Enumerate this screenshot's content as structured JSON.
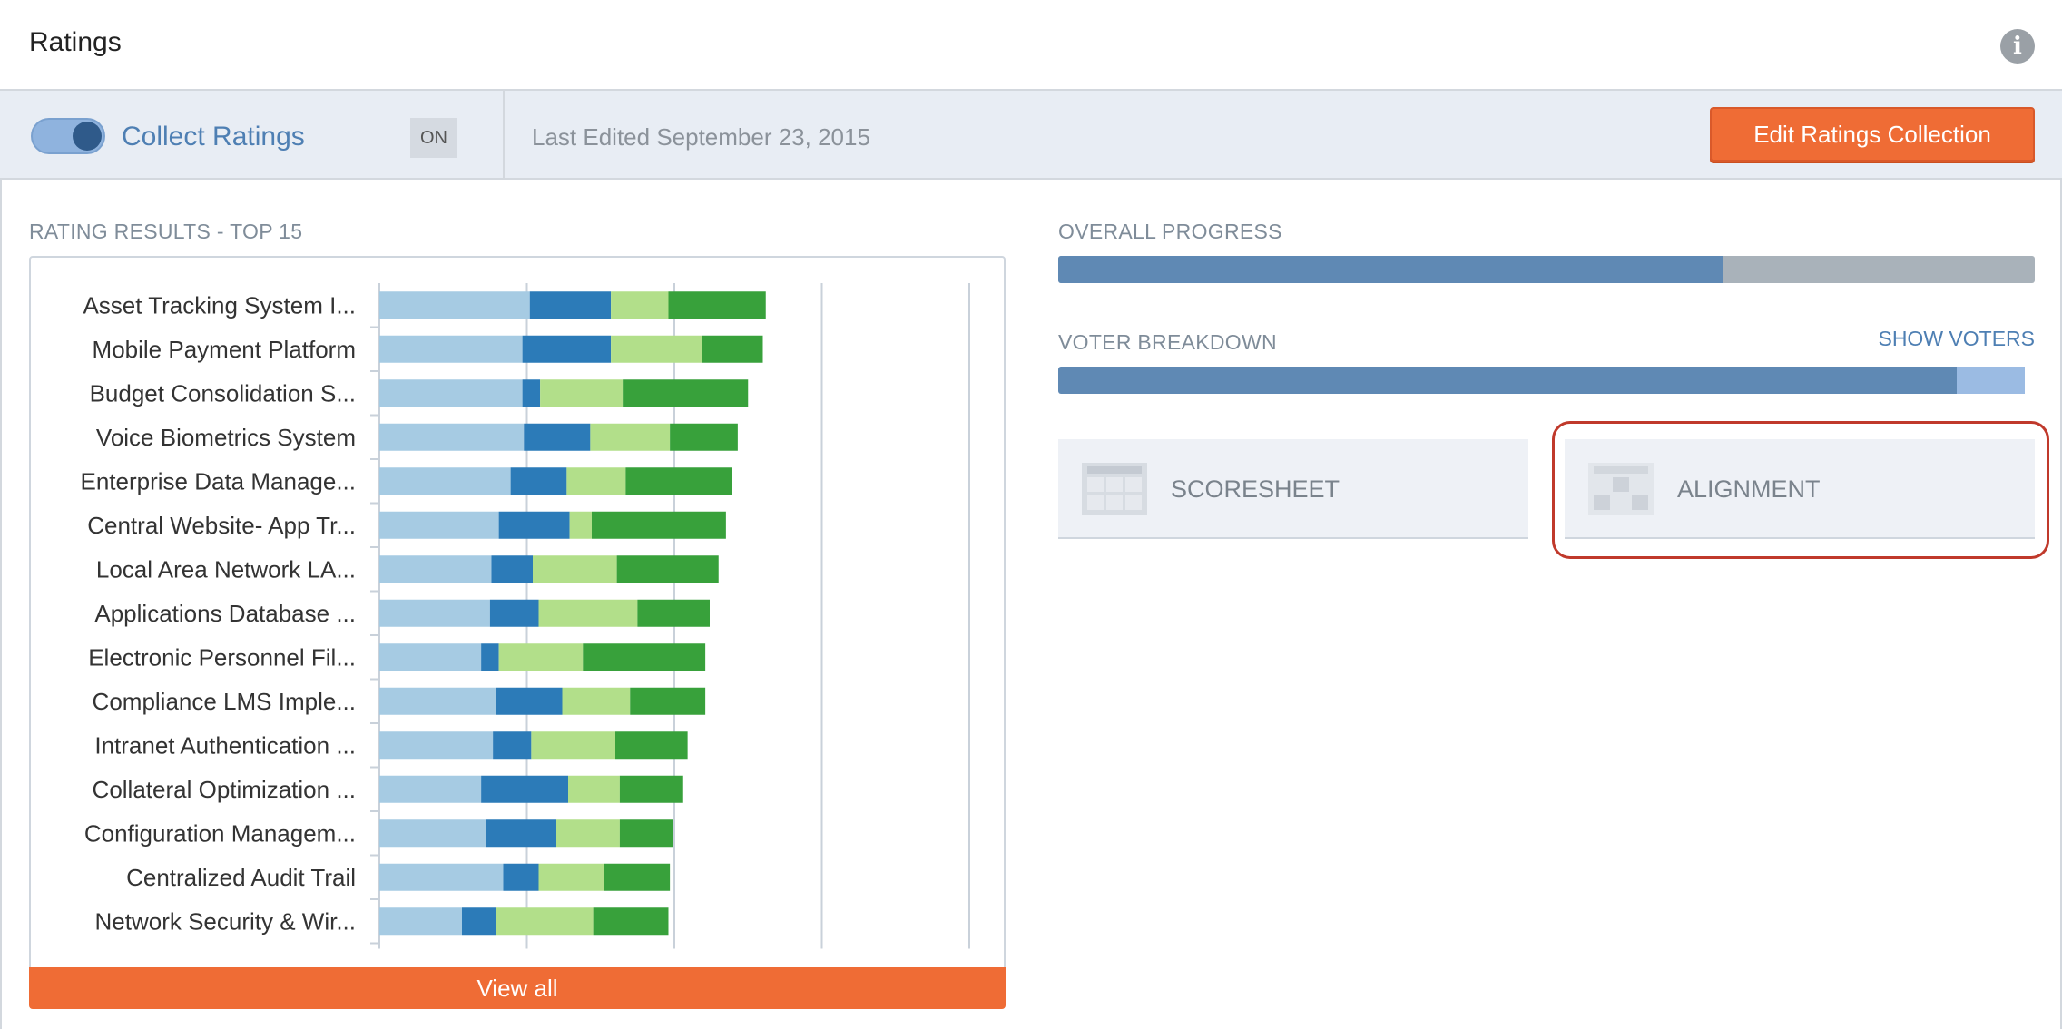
{
  "header": {
    "title": "Ratings",
    "info_icon": "info-icon"
  },
  "toolbar": {
    "toggle_state": "on",
    "collect_label": "Collect Ratings",
    "on_badge": "ON",
    "last_edited": "Last Edited September 23, 2015",
    "edit_button": "Edit Ratings Collection"
  },
  "rating_results": {
    "label": "RATING RESULTS - TOP 15",
    "view_all": "View all"
  },
  "colors": {
    "seg1": "#a6cbe3",
    "seg2": "#2c7bb8",
    "seg3": "#b2df8a",
    "seg4": "#38a13b",
    "accent": "#ef6c35"
  },
  "chart_data": {
    "type": "bar",
    "orientation": "horizontal",
    "stacked": true,
    "categories": [
      "Asset Tracking System I...",
      "Mobile Payment Platform",
      "Budget Consolidation S...",
      "Voice Biometrics System",
      "Enterprise Data Manage...",
      "Central Website- App Tr...",
      "Local Area Network LA...",
      "Applications Database ...",
      "Electronic Personnel Fil...",
      "Compliance LMS Imple...",
      "Intranet Authentication ...",
      "Collateral Optimization ...",
      "Configuration Managem...",
      "Centralized Audit Trail",
      "Network Security & Wir..."
    ],
    "series": [
      {
        "values": [
          1.02,
          0.97,
          0.97,
          0.98,
          0.89,
          0.81,
          0.76,
          0.75,
          0.69,
          0.79,
          0.77,
          0.69,
          0.72,
          0.84,
          0.56
        ]
      },
      {
        "values": [
          0.55,
          0.6,
          0.12,
          0.45,
          0.38,
          0.48,
          0.28,
          0.33,
          0.12,
          0.45,
          0.26,
          0.59,
          0.48,
          0.24,
          0.23
        ]
      },
      {
        "values": [
          0.39,
          0.62,
          0.56,
          0.54,
          0.4,
          0.15,
          0.57,
          0.67,
          0.57,
          0.46,
          0.57,
          0.35,
          0.43,
          0.44,
          0.66
        ]
      },
      {
        "values": [
          0.66,
          0.41,
          0.85,
          0.46,
          0.72,
          0.91,
          0.69,
          0.49,
          0.83,
          0.51,
          0.49,
          0.43,
          0.36,
          0.45,
          0.51
        ]
      }
    ],
    "xlim": [
      0,
      4
    ],
    "gridlines": [
      1,
      2,
      3,
      4
    ],
    "grid": true
  },
  "overall_progress": {
    "label": "OVERALL PROGRESS",
    "fraction": 0.68
  },
  "voter_breakdown": {
    "label": "VOTER BREAKDOWN",
    "show_voters": "SHOW VOTERS",
    "primary_fraction": 0.92,
    "secondary_fraction": 0.07
  },
  "cards": [
    {
      "label": "SCORESHEET",
      "icon": "scoresheet-icon"
    },
    {
      "label": "ALIGNMENT",
      "icon": "alignment-icon",
      "highlighted": true
    }
  ]
}
